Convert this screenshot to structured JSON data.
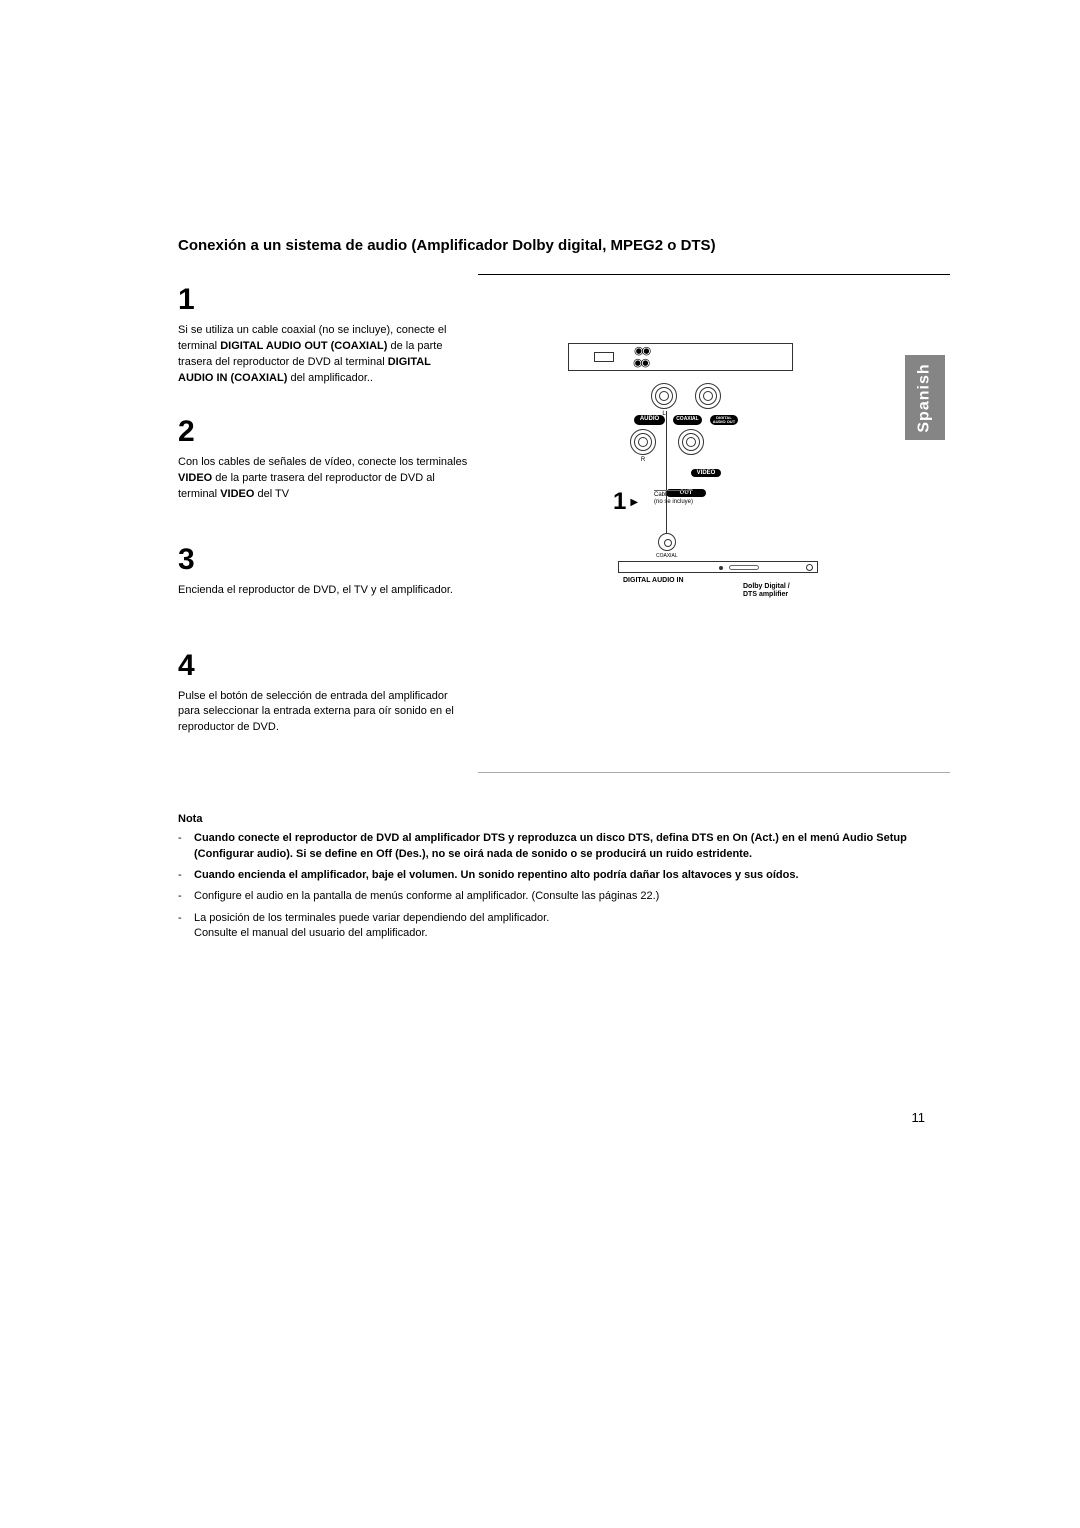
{
  "title": "Conexión a un sistema de audio (Amplificador Dolby digital, MPEG2 o DTS)",
  "side_tab": "Spanish",
  "page_number": "11",
  "steps": [
    {
      "num": "1",
      "text": "Si se utiliza un cable coaxial (no se incluye), conecte el terminal <b>DIGITAL AUDIO OUT (COAXIAL)</b> de la parte trasera del reproductor de DVD al terminal <b>DIGITAL AUDIO IN (COAXIAL)</b> del amplificador.."
    },
    {
      "num": "2",
      "text": "Con los cables de señales de vídeo, conecte los terminales <b>VIDEO</b> de la parte trasera del reproductor de DVD al terminal <b>VIDEO</b> del TV"
    },
    {
      "num": "3",
      "text": "Encienda el reproductor de DVD, el TV y el amplificador."
    },
    {
      "num": "4",
      "text": "Pulse el botón de selección de entrada del amplificador para seleccionar la entrada externa para oír sonido en el reproductor de DVD."
    }
  ],
  "diagram": {
    "audio_label": "AUDIO",
    "coaxial_label": "COAXIAL",
    "digital_audio_out": "DIGITAL\nAUDIO OUT",
    "video_label": "VIDEO",
    "out_label": "OUT",
    "port_l": "L",
    "port_r": "R",
    "step_marker": "1",
    "cable_note1": "Cable coaxial",
    "cable_note2": "(no se incluye)",
    "coax_small": "COAXIAL",
    "digital_audio_in": "DIGITAL AUDIO IN",
    "amp_label1": "Dolby Digital /",
    "amp_label2": "DTS amplifier"
  },
  "notes": {
    "title": "Nota",
    "items": [
      {
        "bold": true,
        "text": "Cuando conecte el reproductor de DVD al amplificador DTS y reproduzca un disco DTS, defina DTS en On (Act.) en el menú Audio Setup (Configurar audio). Si se define en Off (Des.), no se oirá nada de sonido o se producirá un ruido estridente."
      },
      {
        "bold": true,
        "text": "Cuando encienda el amplificador, baje el volumen. Un sonido repentino alto podría dañar los altavoces y sus oídos."
      },
      {
        "bold": false,
        "text": "Configure el audio en la pantalla de menús conforme al amplificador. (Consulte las páginas 22.)"
      },
      {
        "bold": false,
        "text": "La posición de los terminales puede variar dependiendo del amplificador.\nConsulte el manual del usuario del amplificador."
      }
    ]
  }
}
